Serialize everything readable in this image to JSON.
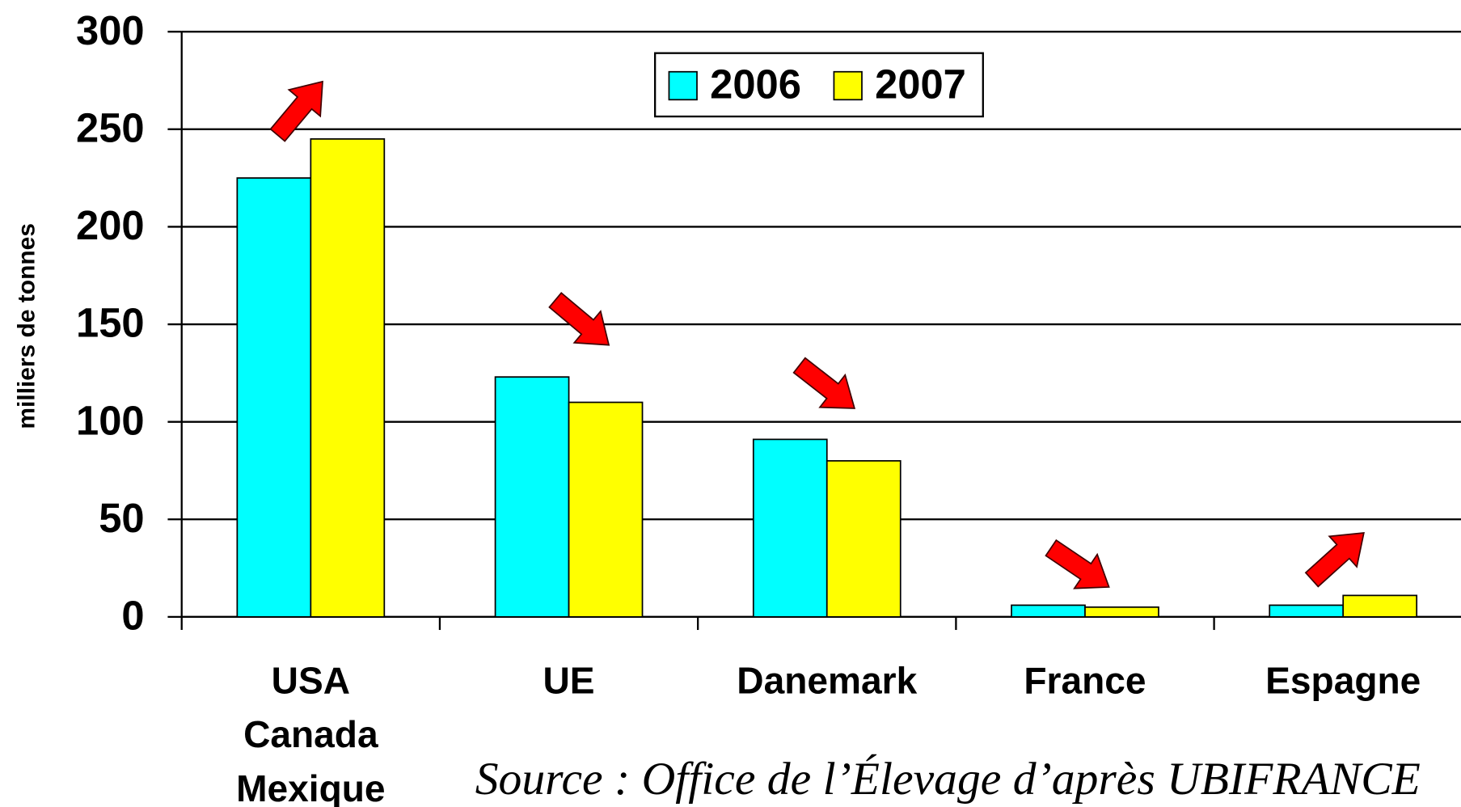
{
  "chart_data": {
    "type": "bar",
    "y_label": "milliers de tonnes",
    "categories": [
      "USA\nCanada\nMexique",
      "UE",
      "Danemark",
      "France",
      "Espagne"
    ],
    "series": [
      {
        "name": "2006",
        "color": "#00ffff",
        "values": [
          225,
          123,
          91,
          6,
          6
        ]
      },
      {
        "name": "2007",
        "color": "#ffff00",
        "values": [
          245,
          110,
          80,
          5,
          11
        ]
      }
    ],
    "ylim": [
      0,
      300
    ],
    "yticks": [
      0,
      50,
      100,
      150,
      200,
      250,
      300
    ],
    "grid": true,
    "legend": "top",
    "source": "Source : Office de l’Élevage d’après UBIFRANCE"
  }
}
